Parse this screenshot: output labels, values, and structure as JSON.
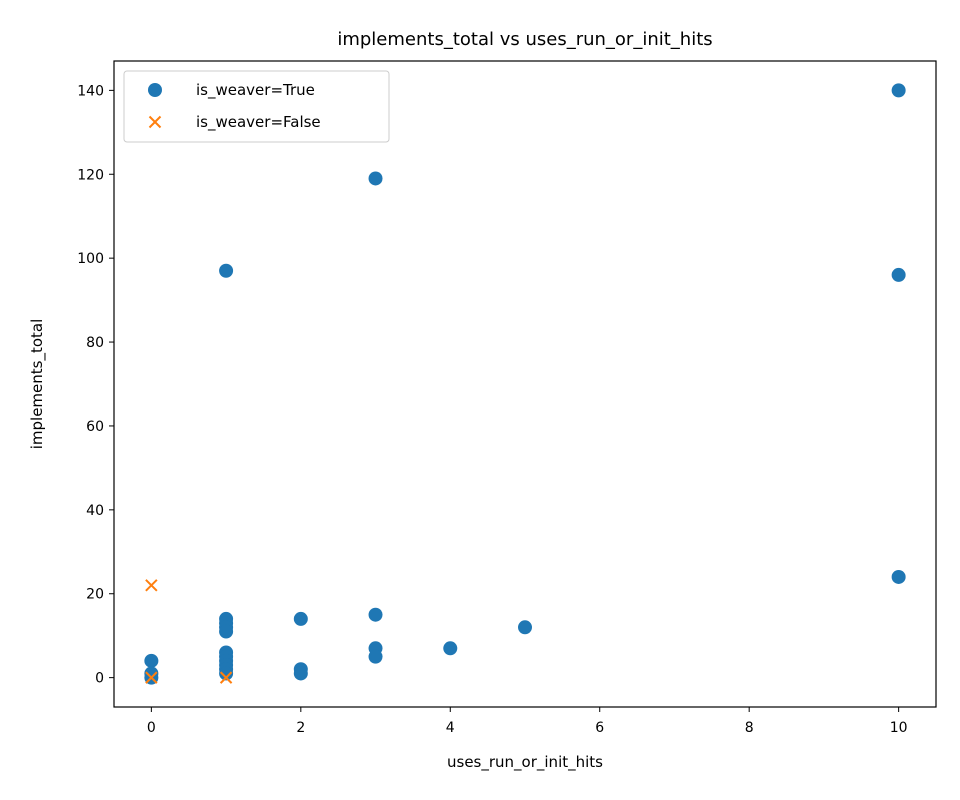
{
  "chart_data": {
    "type": "scatter",
    "title": "implements_total vs uses_run_or_init_hits",
    "xlabel": "uses_run_or_init_hits",
    "ylabel": "implements_total",
    "xlim": [
      -0.5,
      10.5
    ],
    "ylim": [
      -7,
      147
    ],
    "xticks": [
      0,
      2,
      4,
      6,
      8,
      10
    ],
    "yticks": [
      0,
      20,
      40,
      60,
      80,
      100,
      120,
      140
    ],
    "grid": false,
    "legend_position": "top-left",
    "series": [
      {
        "name": "is_weaver=True",
        "marker": "circle",
        "color": "#1f77b4",
        "points": [
          [
            10,
            140
          ],
          [
            3,
            119
          ],
          [
            1,
            97
          ],
          [
            10,
            96
          ],
          [
            10,
            24
          ],
          [
            3,
            15
          ],
          [
            2,
            14
          ],
          [
            1,
            14
          ],
          [
            1,
            13
          ],
          [
            1,
            12
          ],
          [
            1,
            11
          ],
          [
            5,
            12
          ],
          [
            3,
            7
          ],
          [
            4,
            7
          ],
          [
            3,
            5
          ],
          [
            1,
            6
          ],
          [
            1,
            5
          ],
          [
            1,
            4
          ],
          [
            1,
            3
          ],
          [
            1,
            2
          ],
          [
            1,
            1
          ],
          [
            2,
            2
          ],
          [
            2,
            1
          ],
          [
            0,
            4
          ],
          [
            0,
            1
          ],
          [
            0,
            0
          ]
        ]
      },
      {
        "name": "is_weaver=False",
        "marker": "x",
        "color": "#ff7f0e",
        "points": [
          [
            0,
            22
          ],
          [
            0,
            0
          ],
          [
            1,
            0
          ]
        ]
      }
    ]
  }
}
